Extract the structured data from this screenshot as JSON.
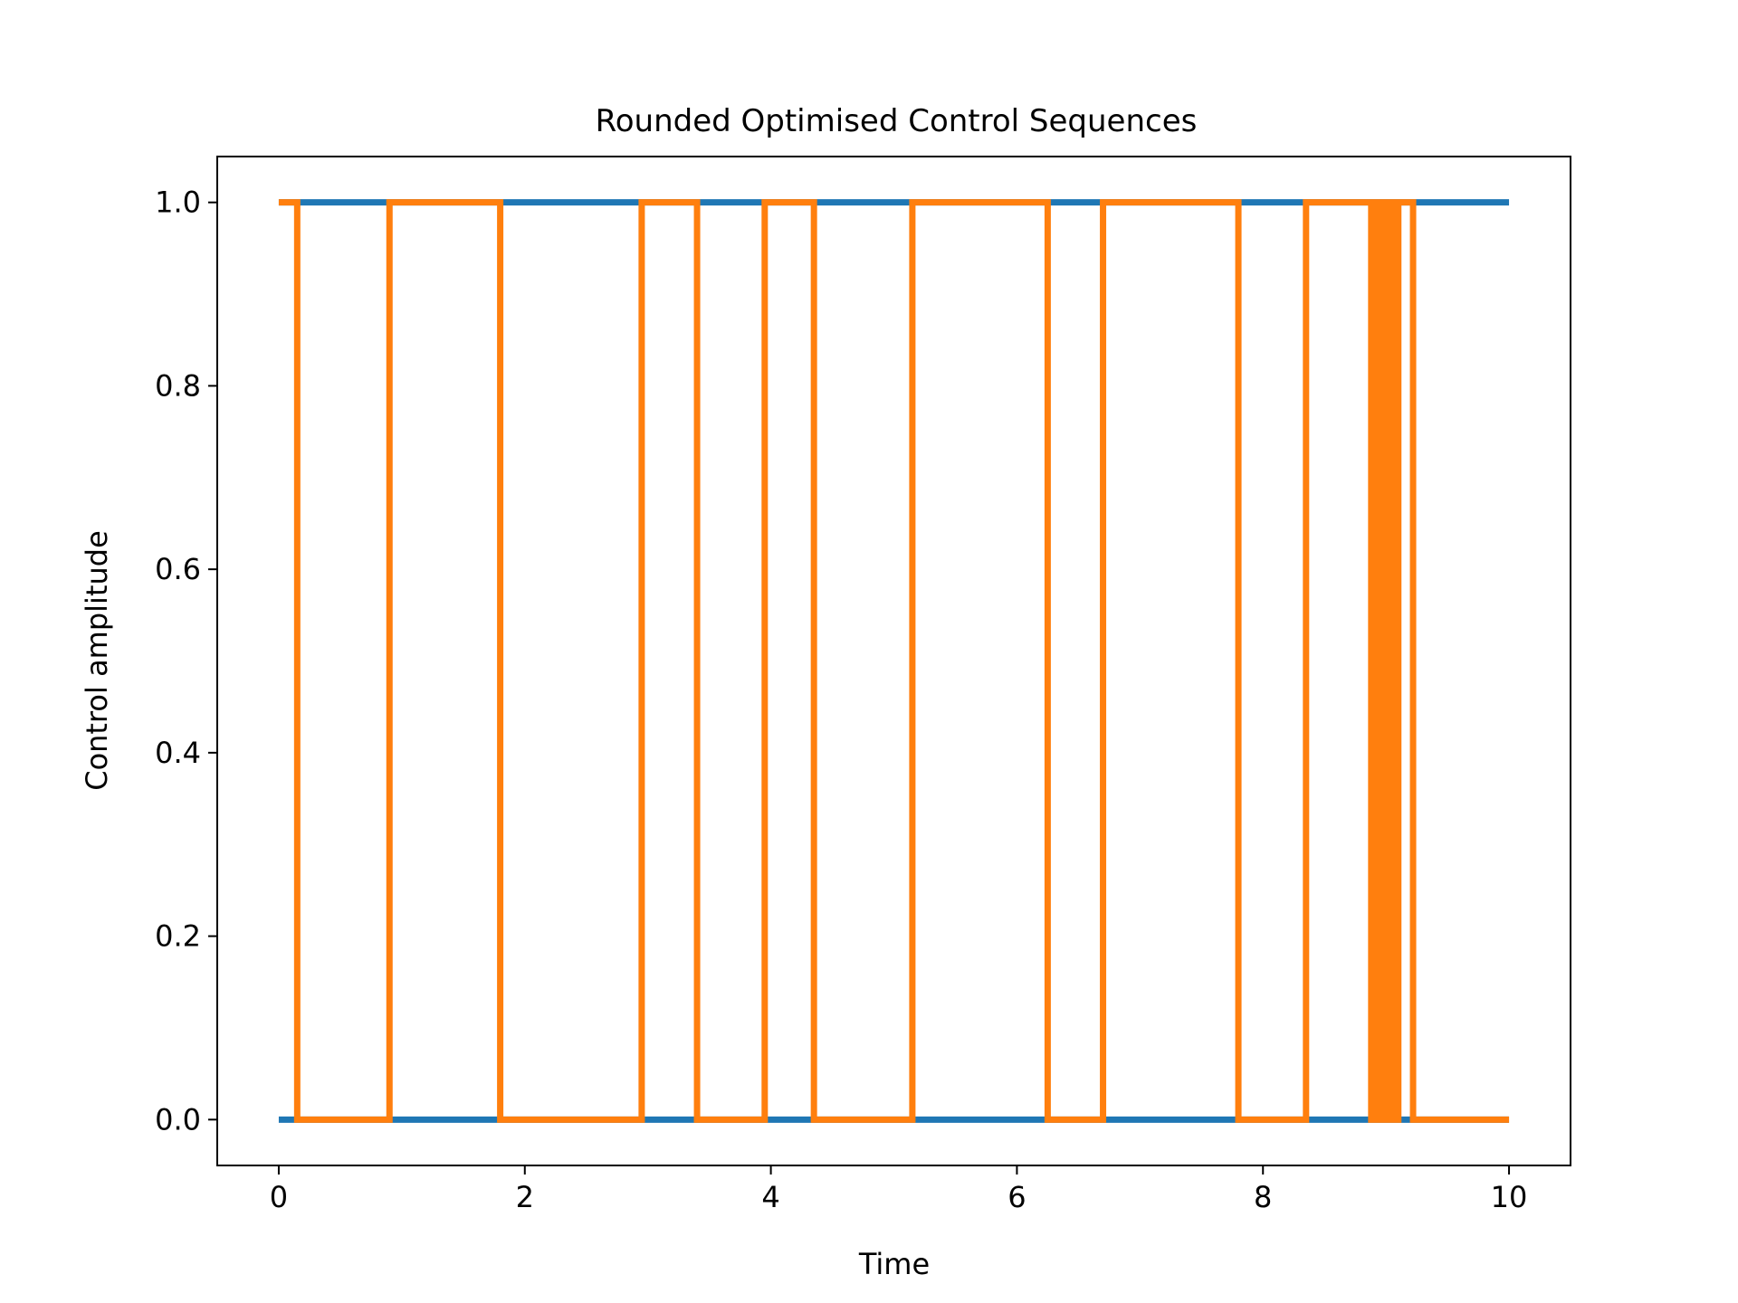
{
  "chart_data": {
    "type": "line",
    "title": "Rounded Optimised Control Sequences",
    "xlabel": "Time",
    "ylabel": "Control amplitude",
    "xlim": [
      -0.5,
      10.5
    ],
    "ylim": [
      -0.05,
      1.05
    ],
    "xticks": [
      0,
      2,
      4,
      6,
      8,
      10
    ],
    "xtick_labels": [
      "0",
      "2",
      "4",
      "6",
      "8",
      "10"
    ],
    "yticks": [
      0.0,
      0.2,
      0.4,
      0.6,
      0.8,
      1.0
    ],
    "ytick_labels": [
      "0.0",
      "0.2",
      "0.4",
      "0.6",
      "0.8",
      "1.0"
    ],
    "grid": false,
    "series": [
      {
        "color": "#1f77b4",
        "drawstyle": "steps-post",
        "points": [
          [
            0,
            0
          ],
          [
            10,
            0
          ]
        ]
      },
      {
        "color": "#1f77b4",
        "drawstyle": "steps-post",
        "points": [
          [
            0,
            1
          ],
          [
            10,
            1
          ]
        ]
      },
      {
        "color": "#ff7f0e",
        "drawstyle": "steps-post",
        "points": [
          [
            0,
            1
          ],
          [
            0.15,
            0
          ],
          [
            0.9,
            1
          ],
          [
            1.8,
            0
          ],
          [
            2.95,
            1
          ],
          [
            3.4,
            0
          ],
          [
            3.95,
            1
          ],
          [
            4.35,
            0
          ],
          [
            5.15,
            1
          ],
          [
            6.25,
            0
          ],
          [
            6.7,
            1
          ],
          [
            7.8,
            0
          ],
          [
            8.35,
            1
          ],
          [
            8.88,
            0
          ],
          [
            8.9,
            1
          ],
          [
            8.92,
            0
          ],
          [
            8.94,
            1
          ],
          [
            8.96,
            0
          ],
          [
            8.98,
            1
          ],
          [
            9.0,
            0
          ],
          [
            9.02,
            1
          ],
          [
            9.04,
            0
          ],
          [
            9.06,
            1
          ],
          [
            9.08,
            0
          ],
          [
            9.1,
            1
          ],
          [
            9.22,
            0
          ],
          [
            10,
            0
          ]
        ]
      }
    ]
  }
}
